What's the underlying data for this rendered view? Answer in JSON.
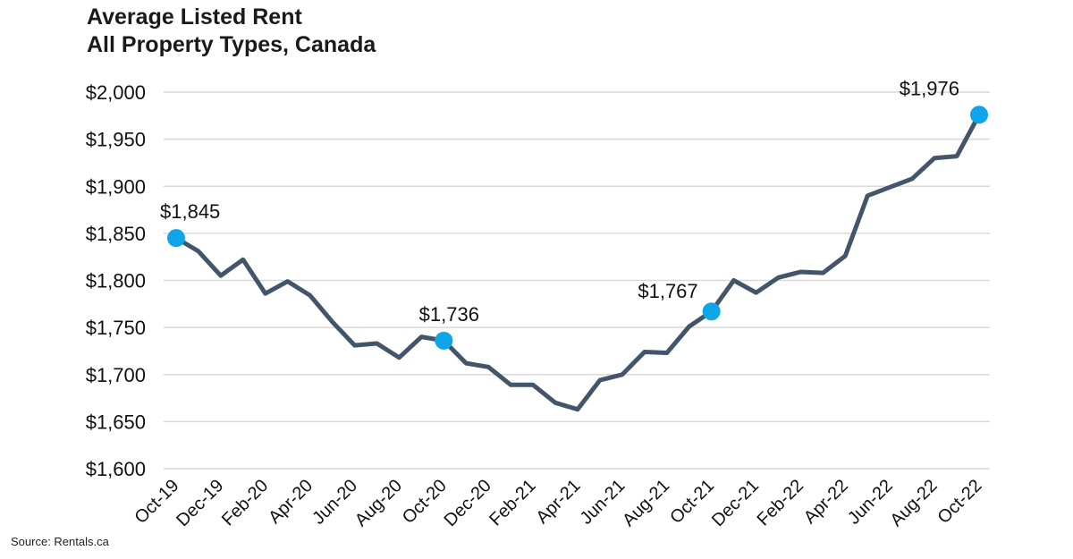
{
  "chart_data": {
    "type": "line",
    "title": "Average Listed Rent",
    "subtitle": "All Property Types, Canada",
    "xlabel": "",
    "ylabel": "",
    "ylim": [
      1600,
      2000
    ],
    "y_ticks": [
      1600,
      1650,
      1700,
      1750,
      1800,
      1850,
      1900,
      1950,
      2000
    ],
    "y_tick_labels": [
      "$1,600",
      "$1,650",
      "$1,700",
      "$1,750",
      "$1,800",
      "$1,850",
      "$1,900",
      "$1,950",
      "$2,000"
    ],
    "x": [
      "Oct-19",
      "Nov-19",
      "Dec-19",
      "Jan-20",
      "Feb-20",
      "Mar-20",
      "Apr-20",
      "May-20",
      "Jun-20",
      "Jul-20",
      "Aug-20",
      "Sep-20",
      "Oct-20",
      "Nov-20",
      "Dec-20",
      "Jan-21",
      "Feb-21",
      "Mar-21",
      "Apr-21",
      "May-21",
      "Jun-21",
      "Jul-21",
      "Aug-21",
      "Sep-21",
      "Oct-21",
      "Nov-21",
      "Dec-21",
      "Jan-22",
      "Feb-22",
      "Mar-22",
      "Apr-22",
      "May-22",
      "Jun-22",
      "Jul-22",
      "Aug-22",
      "Sep-22",
      "Oct-22"
    ],
    "x_tick_labels": [
      "Oct-19",
      "Dec-19",
      "Feb-20",
      "Apr-20",
      "Jun-20",
      "Aug-20",
      "Oct-20",
      "Dec-20",
      "Feb-21",
      "Apr-21",
      "Jun-21",
      "Aug-21",
      "Oct-21",
      "Dec-21",
      "Feb-22",
      "Apr-22",
      "Jun-22",
      "Aug-22",
      "Oct-22"
    ],
    "series": [
      {
        "values": [
          1845,
          1831,
          1805,
          1822,
          1786,
          1799,
          1784,
          1756,
          1731,
          1733,
          1718,
          1740,
          1736,
          1712,
          1708,
          1689,
          1689,
          1670,
          1663,
          1694,
          1700,
          1724,
          1723,
          1751,
          1767,
          1800,
          1787,
          1803,
          1809,
          1808,
          1826,
          1890,
          1899,
          1908,
          1930,
          1932,
          1976
        ],
        "color": "#44546a"
      }
    ],
    "highlights": [
      {
        "x": "Oct-19",
        "value": 1845,
        "label": "$1,845"
      },
      {
        "x": "Oct-20",
        "value": 1736,
        "label": "$1,736"
      },
      {
        "x": "Oct-21",
        "value": 1767,
        "label": "$1,767"
      },
      {
        "x": "Oct-22",
        "value": 1976,
        "label": "$1,976"
      }
    ],
    "marker_color": "#0ea5e9",
    "grid": true,
    "legend": "none"
  },
  "source": "Source: Rentals.ca"
}
